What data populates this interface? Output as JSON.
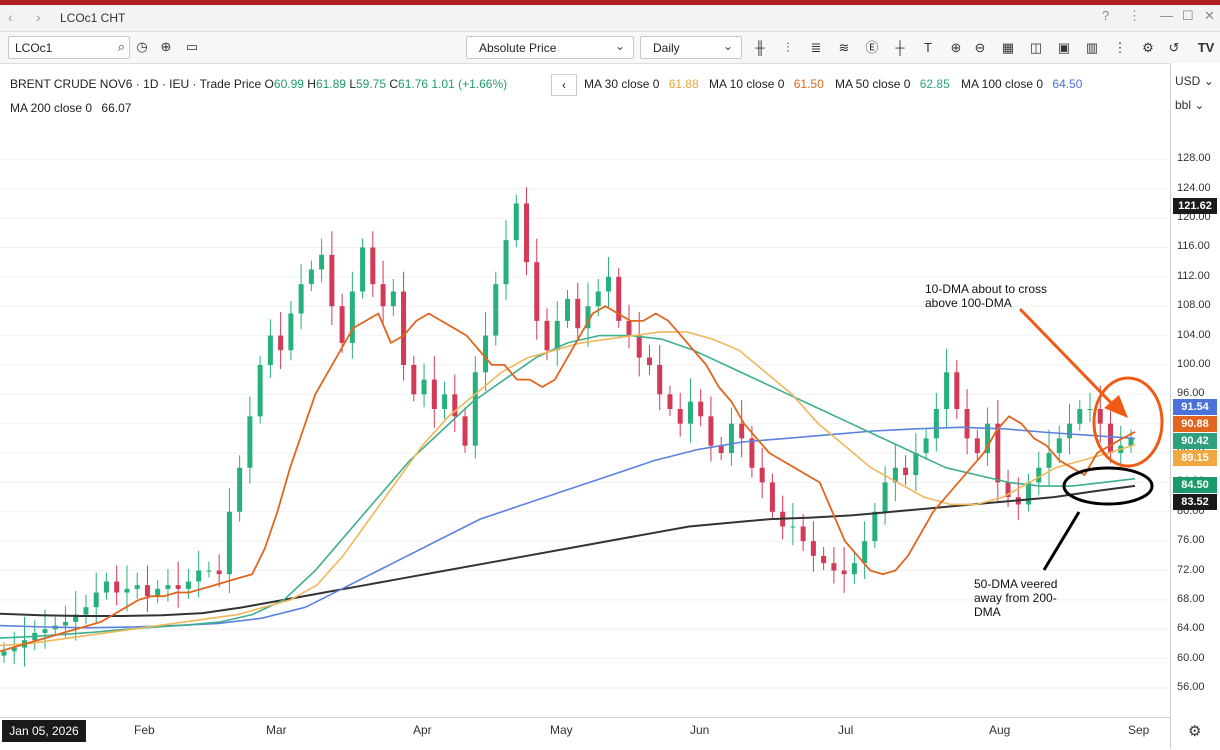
{
  "window": {
    "title": "LCOc1 CHT",
    "back": "‹",
    "forward": "›",
    "controls": [
      "?",
      "⋮",
      "—",
      "☐",
      "✕"
    ]
  },
  "toolbar": {
    "symbol": "LCOc1",
    "price_type": "Absolute Price",
    "interval": "Daily"
  },
  "legend": {
    "instrument": "BRENT CRUDE NOV6",
    "interval": "1D",
    "exchange": "IEU",
    "field": "Trade Price",
    "open_label": "O",
    "open": "60.99",
    "high_label": "H",
    "high": "61.89",
    "low_label": "L",
    "low": "59.75",
    "close_label": "C",
    "close": "61.76",
    "change": "1.01 (+1.66%)",
    "collapse": "‹",
    "ma30_label": "MA 30 close 0",
    "ma30_value": "61.88",
    "ma30_color": "#f0b75b",
    "ma10_label": "MA 10 close 0",
    "ma10_value": "61.50",
    "ma10_color": "#e0651e",
    "ma50_label": "MA 50 close 0",
    "ma50_value": "62.85",
    "ma50_color": "#3dae8f",
    "ma100_label": "MA 100 close 0",
    "ma100_value": "64.50",
    "ma100_color": "#5b82e0",
    "ma200_label": "MA 200 close 0",
    "ma200_value": "66.07",
    "ma200_color": "#333333"
  },
  "axis": {
    "currency": "USD",
    "unit": "bbl",
    "ticks": [
      "128.00",
      "124.00",
      "120.00",
      "116.00",
      "112.00",
      "108.00",
      "104.00",
      "100.00",
      "96.00",
      "92.00",
      "88.00",
      "84.00",
      "80.00",
      "76.00",
      "72.00",
      "68.00",
      "64.00",
      "60.00",
      "56.00"
    ],
    "tags": [
      {
        "value": "121.62",
        "color": "#1a1a1a"
      },
      {
        "value": "91.54",
        "color": "#4a72d8"
      },
      {
        "value": "90.88",
        "color": "#e0651e"
      },
      {
        "value": "90.42",
        "color": "#2ea07e"
      },
      {
        "value": "89.15",
        "color": "#f0a940"
      },
      {
        "value": "84.50",
        "color": "#1a9a6a"
      },
      {
        "value": "83.52",
        "color": "#1a1a1a"
      }
    ],
    "x_start": "Jan 05, 2026",
    "months": [
      "Feb",
      "Mar",
      "Apr",
      "May",
      "Jun",
      "Jul",
      "Aug",
      "Sep"
    ]
  },
  "annotations": {
    "note1_line1": "10-DMA about to cross",
    "note1_line2": "above 100-DMA",
    "note2_line1": "50-DMA veered",
    "note2_line2": "away from 200-",
    "note2_line3": "DMA"
  },
  "chart_data": {
    "type": "candlestick",
    "title": "BRENT CRUDE NOV6",
    "ylim": [
      53,
      132
    ],
    "x_labels": [
      "Jan 05, 2026",
      "Feb",
      "Mar",
      "Apr",
      "May",
      "Jun",
      "Jul",
      "Aug",
      "Sep"
    ],
    "close_path": [
      61,
      61.5,
      62.5,
      63.5,
      64,
      64.5,
      65,
      66,
      67,
      69,
      70.5,
      69,
      69.5,
      70,
      68.5,
      69.5,
      70,
      69.5,
      70.5,
      72,
      72,
      71.5,
      80,
      86,
      93,
      100,
      104,
      102,
      107,
      111,
      113,
      115,
      108,
      103,
      110,
      116,
      111,
      108,
      110,
      100,
      96,
      98,
      94,
      96,
      93,
      89,
      99,
      104,
      111,
      117,
      122,
      114,
      106,
      102,
      106,
      109,
      105,
      108,
      110,
      112,
      106,
      104,
      101,
      100,
      96,
      94,
      92,
      95,
      93,
      89,
      88,
      92,
      90,
      86,
      84,
      80,
      78,
      78,
      76,
      74,
      73,
      72,
      71.5,
      73,
      76,
      80,
      84,
      86,
      85,
      88,
      90,
      94,
      99,
      94,
      90,
      88,
      92,
      84,
      82,
      81,
      84,
      86,
      88,
      90,
      92,
      94,
      94,
      92,
      88,
      89,
      90
    ],
    "ma10": [
      61,
      61.5,
      62,
      62.5,
      63,
      63.5,
      64,
      64.5,
      65,
      66,
      67,
      68,
      68.5,
      68.5,
      69,
      69,
      69.5,
      70,
      70.5,
      71,
      71.5,
      75,
      80,
      86,
      91,
      96,
      99,
      102,
      105,
      106,
      107,
      103,
      104,
      106,
      107,
      106,
      105,
      104,
      102,
      100,
      100,
      98,
      98,
      97,
      98,
      101,
      104,
      107,
      108,
      107,
      106,
      106,
      107,
      106,
      104,
      102,
      100,
      97,
      95,
      92,
      90,
      88,
      87,
      86,
      85,
      84,
      80,
      76,
      74,
      72,
      71.5,
      72,
      74,
      77,
      80,
      82,
      84,
      86,
      88,
      91,
      93,
      92,
      90,
      89,
      87,
      86,
      85,
      88,
      89,
      90,
      90.88
    ],
    "ma30": [
      61.8,
      62,
      62.5,
      63,
      63.5,
      64,
      64.5,
      65,
      65.5,
      66,
      67,
      68,
      70,
      74,
      79,
      84,
      89,
      93,
      96,
      99,
      101,
      102,
      103,
      103.5,
      104,
      104.5,
      104.5,
      103.5,
      102,
      99,
      96,
      92,
      89,
      86,
      84,
      82,
      81,
      81,
      82,
      84,
      86,
      87,
      88,
      89.15
    ],
    "ma50": [
      62.8,
      63,
      63.3,
      63.6,
      64,
      64.3,
      64.6,
      65,
      66,
      68,
      72,
      77,
      82,
      87,
      91,
      95,
      98,
      101,
      103,
      104,
      104,
      103.5,
      102,
      100,
      98,
      96,
      94,
      92,
      90,
      88,
      86,
      85,
      84,
      83.5,
      83.5,
      84,
      84.5
    ],
    "ma100": [
      64.5,
      64.3,
      64.2,
      64.3,
      64.5,
      64.8,
      65.5,
      67,
      70,
      73,
      76,
      79,
      81,
      83,
      85,
      87,
      88.5,
      89.5,
      90,
      90.5,
      91,
      91.3,
      91.5,
      91.3,
      90.8,
      90.4,
      90
    ],
    "ma200": [
      66.1,
      65.9,
      65.8,
      65.8,
      65.9,
      66.2,
      67,
      68,
      69,
      70,
      71,
      72,
      73,
      74,
      75,
      76,
      77,
      78,
      78.5,
      79,
      79.2,
      79.5,
      80,
      80.5,
      81,
      81.5,
      82,
      82.8,
      83.52
    ]
  }
}
